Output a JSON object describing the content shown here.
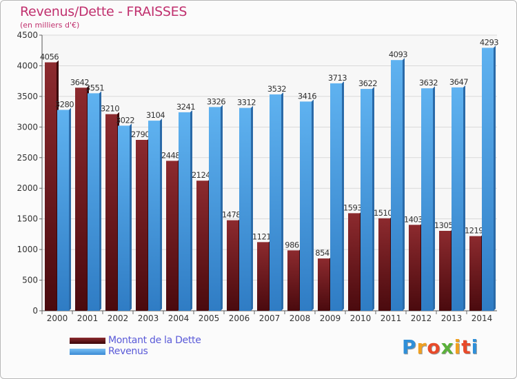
{
  "chart_data": {
    "type": "bar",
    "title": "Revenus/Dette - FRAISSES",
    "subtitle": "(en milliers d'€)",
    "categories": [
      "2000",
      "2001",
      "2002",
      "2003",
      "2004",
      "2005",
      "2006",
      "2007",
      "2008",
      "2009",
      "2010",
      "2011",
      "2012",
      "2013",
      "2014"
    ],
    "series": [
      {
        "name": "Montant de la Dette",
        "color": "#7a1e22",
        "values": [
          4056,
          3642,
          3210,
          2790,
          2448,
          2124,
          1478,
          1121,
          986,
          854,
          1593,
          1510,
          1403,
          1305,
          1219
        ]
      },
      {
        "name": "Revenus",
        "color": "#4fa3e8",
        "values": [
          3280,
          3551,
          3022,
          3104,
          3241,
          3326,
          3312,
          3532,
          3416,
          3713,
          3622,
          4093,
          3632,
          3647,
          4293
        ]
      }
    ],
    "y_ticks": [
      "0",
      "500",
      "1000",
      "1500",
      "2000",
      "2500",
      "3000",
      "3500",
      "4000",
      "4500"
    ],
    "ylim": [
      0,
      4500
    ],
    "grid": true,
    "legend_position": "bottom-left"
  },
  "logo": {
    "text": "Proxiti",
    "letters": [
      "P",
      "r",
      "o",
      "x",
      "i",
      "t",
      "i"
    ],
    "colors": [
      "#2f8fd8",
      "#f0a020",
      "#e84a2a",
      "#5ab03a",
      "#f0a020",
      "#e84a2a",
      "#2f8fd8"
    ]
  }
}
